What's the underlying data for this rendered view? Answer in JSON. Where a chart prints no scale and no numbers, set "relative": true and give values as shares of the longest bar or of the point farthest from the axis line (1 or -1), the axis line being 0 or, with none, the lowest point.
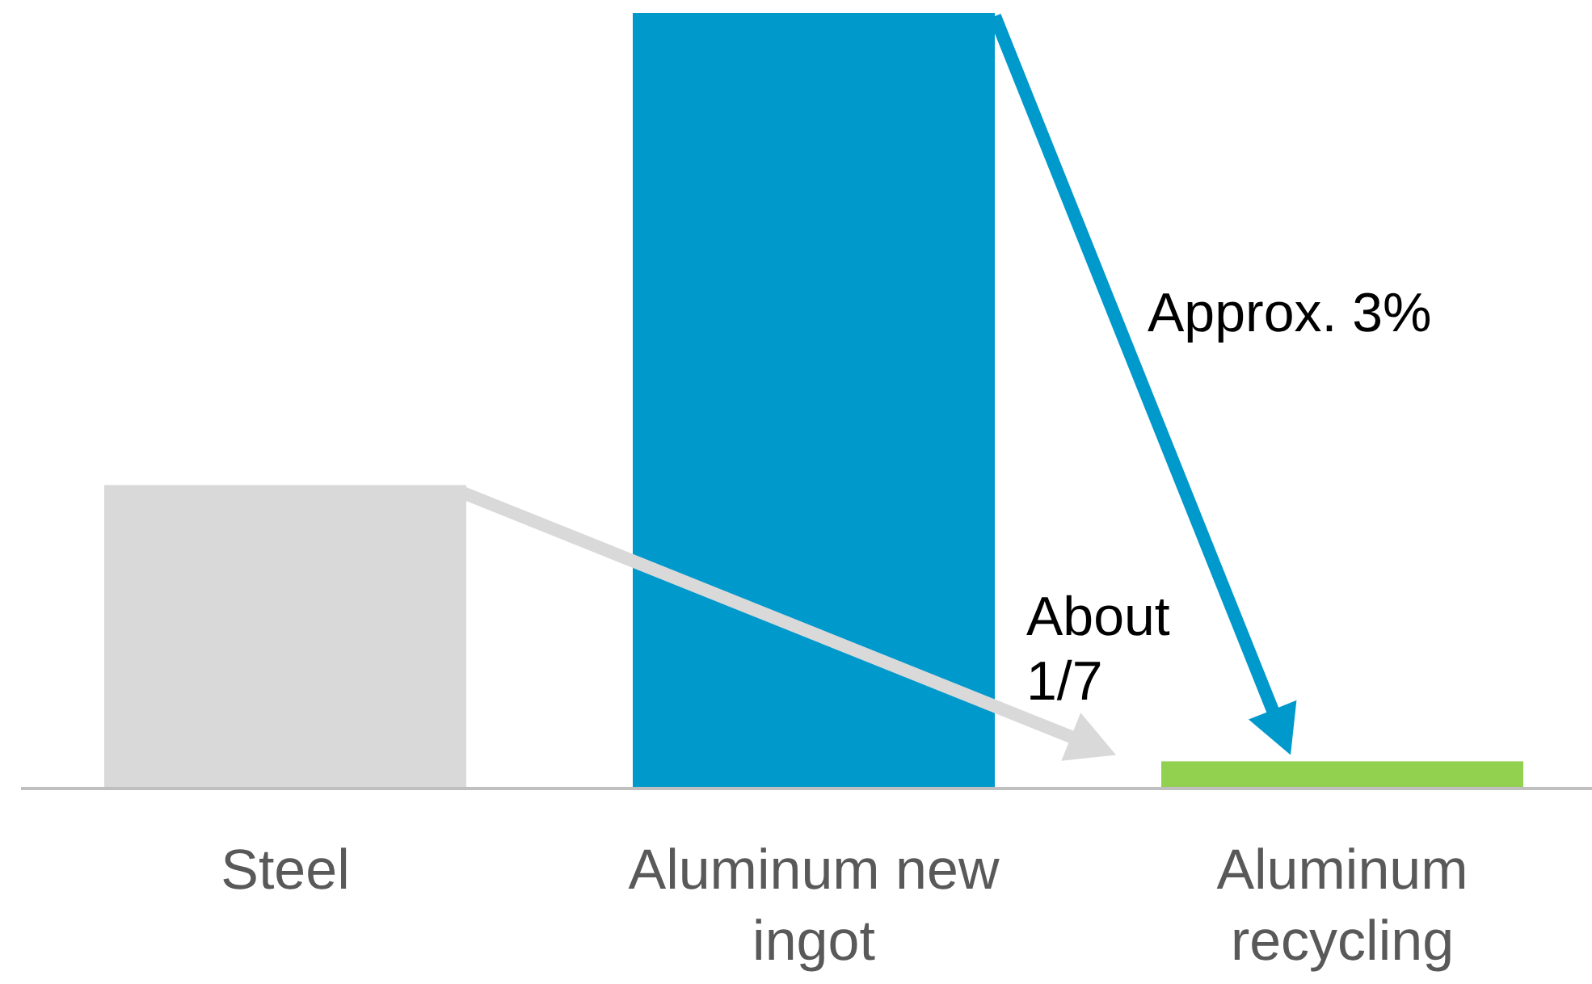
{
  "chart_data": {
    "type": "bar",
    "relative": true,
    "categories": [
      "Steel",
      "Aluminum new ingot",
      "Aluminum recycling"
    ],
    "values": [
      0.39,
      1,
      0.033
    ],
    "colors": [
      "#d9d9d9",
      "#0099cc",
      "#92d050"
    ],
    "annotations": [
      "Approx.  3%",
      "About 1/7"
    ]
  }
}
